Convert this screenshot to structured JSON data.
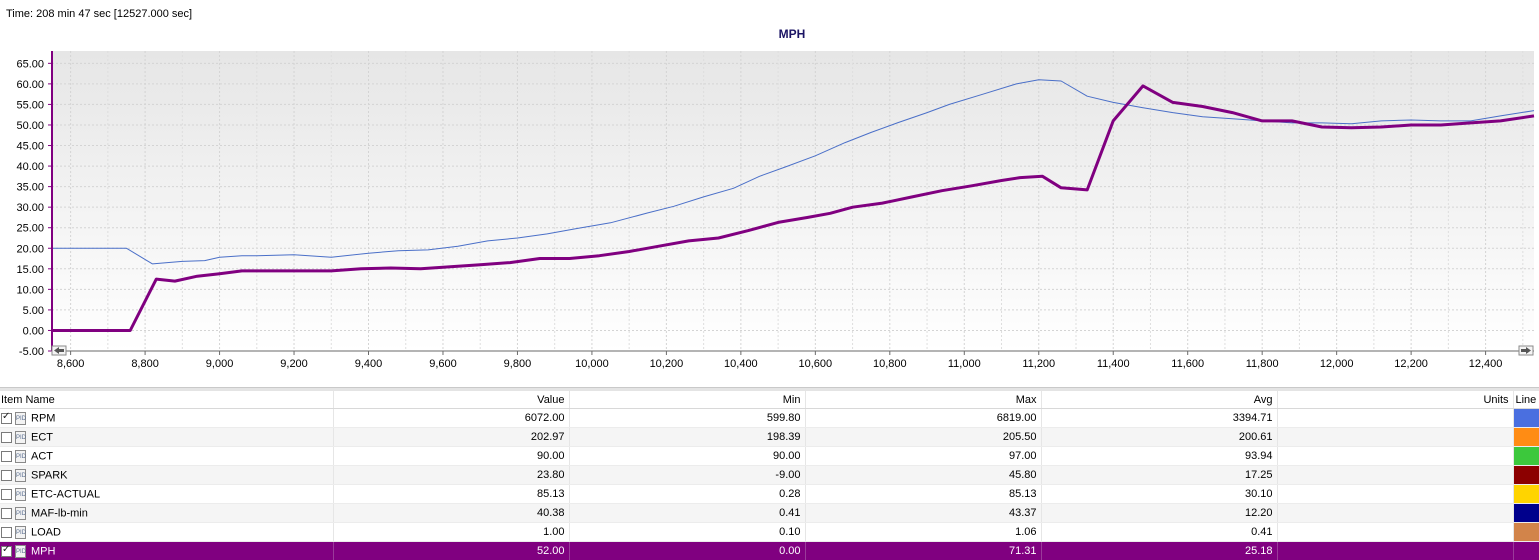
{
  "time_label": "Time: 208 min 47 sec [12527.000 sec]",
  "chart_data": {
    "type": "line",
    "title": "MPH",
    "xlim": [
      8550,
      12530
    ],
    "ylim": [
      -5,
      68
    ],
    "y_ticks": [
      "65.00",
      "60.00",
      "55.00",
      "50.00",
      "45.00",
      "40.00",
      "35.00",
      "30.00",
      "25.00",
      "20.00",
      "15.00",
      "10.00",
      "5.00",
      "0.00",
      "-5.00"
    ],
    "y_tick_values": [
      65,
      60,
      55,
      50,
      45,
      40,
      35,
      30,
      25,
      20,
      15,
      10,
      5,
      0,
      -5
    ],
    "x_ticks": [
      "8,600",
      "8,800",
      "9,000",
      "9,200",
      "9,400",
      "9,600",
      "9,800",
      "10,000",
      "10,200",
      "10,400",
      "10,600",
      "10,800",
      "11,000",
      "11,200",
      "11,400",
      "11,600",
      "11,800",
      "12,000",
      "12,200",
      "12,400"
    ],
    "x_tick_values": [
      8600,
      8800,
      9000,
      9200,
      9400,
      9600,
      9800,
      10000,
      10200,
      10400,
      10600,
      10800,
      11000,
      11200,
      11400,
      11600,
      11800,
      12000,
      12200,
      12400
    ],
    "series": [
      {
        "name": "RPM",
        "color": "#4a6fc8",
        "stroke": "thin",
        "x": [
          8550,
          8750,
          8820,
          8900,
          8960,
          9000,
          9060,
          9100,
          9200,
          9300,
          9400,
          9480,
          9560,
          9640,
          9720,
          9800,
          9880,
          9960,
          10050,
          10150,
          10220,
          10300,
          10380,
          10450,
          10520,
          10600,
          10680,
          10750,
          10820,
          10900,
          10960,
          11050,
          11140,
          11200,
          11260,
          11330,
          11400,
          11480,
          11560,
          11640,
          11720,
          11800,
          11880,
          11960,
          12040,
          12120,
          12200,
          12280,
          12360,
          12440,
          12530
        ],
        "y": [
          20,
          20,
          16.2,
          16.8,
          17,
          17.8,
          18.2,
          18.2,
          18.4,
          17.8,
          18.8,
          19.4,
          19.6,
          20.5,
          21.8,
          22.5,
          23.5,
          24.8,
          26.2,
          28.6,
          30.2,
          32.5,
          34.6,
          37.5,
          39.8,
          42.5,
          45.7,
          48.2,
          50.5,
          53,
          55,
          57.5,
          60,
          61,
          60.7,
          57,
          55.5,
          54.2,
          53,
          52,
          51.5,
          51,
          50.5,
          50.5,
          50.3,
          51,
          51.2,
          51,
          51,
          52.2,
          53.5
        ]
      },
      {
        "name": "MPH",
        "color": "#800080",
        "stroke": "thick",
        "x": [
          8550,
          8760,
          8830,
          8880,
          8940,
          9000,
          9060,
          9140,
          9220,
          9300,
          9380,
          9460,
          9540,
          9620,
          9700,
          9780,
          9860,
          9940,
          10020,
          10100,
          10180,
          10260,
          10340,
          10420,
          10500,
          10580,
          10640,
          10700,
          10780,
          10860,
          10940,
          11020,
          11100,
          11150,
          11210,
          11260,
          11330,
          11400,
          11480,
          11560,
          11640,
          11720,
          11800,
          11880,
          11960,
          12040,
          12120,
          12200,
          12280,
          12360,
          12440,
          12530
        ],
        "y": [
          0,
          0,
          12.5,
          12,
          13.2,
          13.8,
          14.5,
          14.5,
          14.5,
          14.5,
          15,
          15.2,
          15,
          15.5,
          16,
          16.5,
          17.5,
          17.5,
          18.2,
          19.2,
          20.5,
          21.8,
          22.5,
          24.3,
          26.3,
          27.5,
          28.5,
          30,
          31,
          32.5,
          34,
          35.2,
          36.5,
          37.2,
          37.5,
          34.7,
          34.2,
          51,
          59.5,
          55.5,
          54.5,
          53,
          51,
          51,
          49.5,
          49.3,
          49.5,
          50,
          50,
          50.5,
          51,
          52.2
        ]
      }
    ]
  },
  "table": {
    "columns": [
      "Item Name",
      "Value",
      "Min",
      "Max",
      "Avg",
      "Units",
      "Line"
    ],
    "rows": [
      {
        "name": "RPM",
        "value": "6072.00",
        "min": "599.80",
        "max": "6819.00",
        "avg": "3394.71",
        "units": "",
        "checked": true,
        "color": "#4a6fe0"
      },
      {
        "name": "ECT",
        "value": "202.97",
        "min": "198.39",
        "max": "205.50",
        "avg": "200.61",
        "units": "",
        "checked": false,
        "color": "#ff8c14"
      },
      {
        "name": "ACT",
        "value": "90.00",
        "min": "90.00",
        "max": "97.00",
        "avg": "93.94",
        "units": "",
        "checked": false,
        "color": "#3cc83c"
      },
      {
        "name": "SPARK",
        "value": "23.80",
        "min": "-9.00",
        "max": "45.80",
        "avg": "17.25",
        "units": "",
        "checked": false,
        "color": "#8c0000"
      },
      {
        "name": "ETC-ACTUAL",
        "value": "85.13",
        "min": "0.28",
        "max": "85.13",
        "avg": "30.10",
        "units": "",
        "checked": false,
        "color": "#ffd400"
      },
      {
        "name": "MAF-lb-min",
        "value": "40.38",
        "min": "0.41",
        "max": "43.37",
        "avg": "12.20",
        "units": "",
        "checked": false,
        "color": "#00008c"
      },
      {
        "name": "LOAD",
        "value": "1.00",
        "min": "0.10",
        "max": "1.06",
        "avg": "0.41",
        "units": "",
        "checked": false,
        "color": "#d2844a"
      },
      {
        "name": "MPH",
        "value": "52.00",
        "min": "0.00",
        "max": "71.31",
        "avg": "25.18",
        "units": "",
        "checked": true,
        "color": "#800080"
      }
    ],
    "selected_row": 7
  },
  "icons": {
    "row_icon": "pid-file-icon",
    "scroll_left": "arrow-left-icon",
    "scroll_right": "arrow-right-icon"
  }
}
